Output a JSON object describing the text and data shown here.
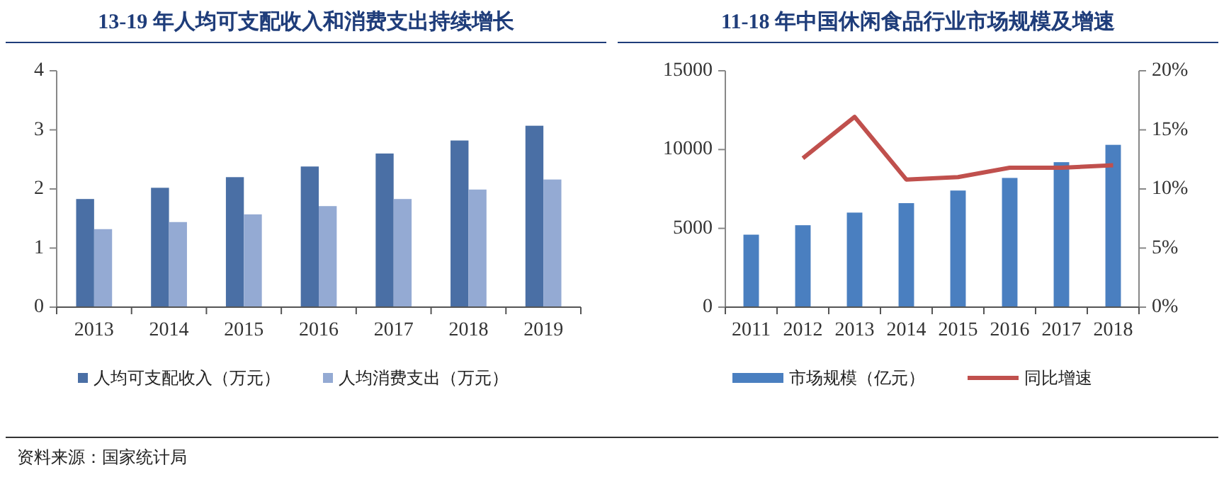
{
  "chart_data": [
    {
      "type": "bar",
      "title": "13-19 年人均可支配收入和消费支出持续增长",
      "categories": [
        "2013",
        "2014",
        "2015",
        "2016",
        "2017",
        "2018",
        "2019"
      ],
      "series": [
        {
          "name": "人均可支配收入（万元）",
          "color": "#4a6fa5",
          "values": [
            1.83,
            2.02,
            2.2,
            2.38,
            2.6,
            2.82,
            3.07
          ]
        },
        {
          "name": "人均消费支出（万元）",
          "color": "#94aad3",
          "values": [
            1.32,
            1.44,
            1.57,
            1.71,
            1.83,
            1.99,
            2.16
          ]
        }
      ],
      "ylim": [
        0,
        4
      ],
      "yticks": [
        0,
        1,
        2,
        3,
        4
      ],
      "legend": "bottom",
      "annotations": [
        "资料来源：国家统计局"
      ]
    },
    {
      "type": "bar",
      "title": "11-18 年中国休闲食品行业市场规模及增速",
      "categories": [
        "2011",
        "2012",
        "2013",
        "2014",
        "2015",
        "2016",
        "2017",
        "2018"
      ],
      "series": [
        {
          "name": "市场规模（亿元）",
          "color": "#4a7fc0",
          "values": [
            4600,
            5200,
            6000,
            6600,
            7400,
            8200,
            9200,
            10300
          ]
        },
        {
          "type": "line",
          "axis": "y2",
          "name": "同比增速",
          "color": "#c0504d",
          "values": [
            null,
            12.6,
            16.1,
            10.8,
            11.0,
            11.8,
            11.8,
            12.0
          ]
        }
      ],
      "ylim": [
        0,
        15000
      ],
      "yticks": [
        0,
        5000,
        10000,
        15000
      ],
      "y2lim": [
        0,
        20
      ],
      "y2ticks": [
        {
          "value": 0,
          "label": "0%"
        },
        {
          "value": 5,
          "label": "5%"
        },
        {
          "value": 10,
          "label": "10%"
        },
        {
          "value": 15,
          "label": "15%"
        },
        {
          "value": 20,
          "label": "20%"
        }
      ],
      "legend": "bottom"
    }
  ]
}
